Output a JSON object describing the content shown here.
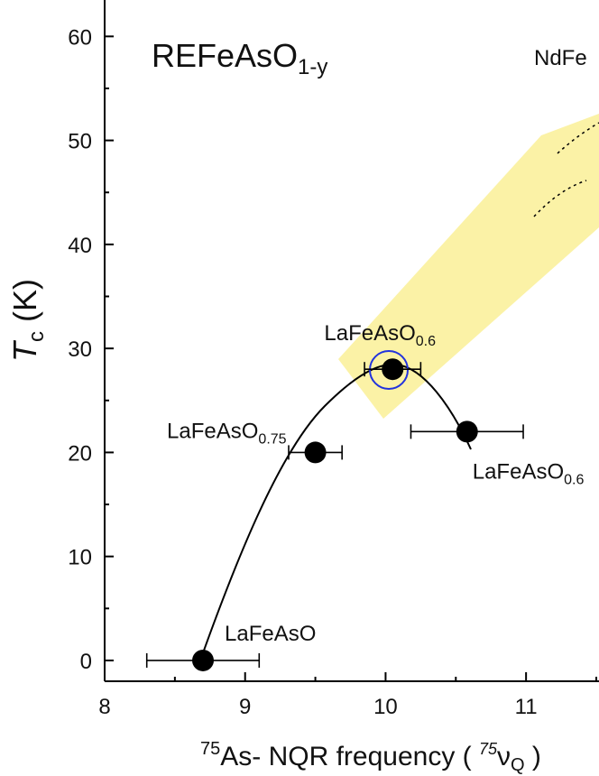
{
  "chart_data": {
    "type": "scatter",
    "title": {
      "text": "REFeAsO",
      "sub": "1-y"
    },
    "annotation": "NdFe",
    "y_label": {
      "italic": "T",
      "sub": "c",
      "rest": " (K)"
    },
    "x_label": {
      "sup1": "75",
      "text1": "As- NQR frequency ( ",
      "sup2": "75",
      "symbol": "ν",
      "sub": "Q",
      "text2": " )"
    },
    "x": [
      8.7,
      9.5,
      10.05,
      10.58
    ],
    "values": [
      0,
      20,
      28,
      22
    ],
    "x_errors": [
      0.4,
      0.19,
      0.2,
      0.4
    ],
    "color": "#000000",
    "point_labels": [
      {
        "text": "LaFeAsO"
      },
      {
        "text": "LaFeAsO",
        "sub": "0.75"
      },
      {
        "text": "LaFeAsO",
        "sub": "0.6"
      },
      {
        "text": "LaFeAsO",
        "sub": "0.6"
      }
    ],
    "xlim": [
      8,
      11.5
    ],
    "ylim": [
      -2,
      63.5
    ],
    "xticks": [
      8,
      9,
      10,
      11
    ],
    "yticks": [
      0,
      10,
      20,
      30,
      40,
      50,
      60
    ]
  }
}
